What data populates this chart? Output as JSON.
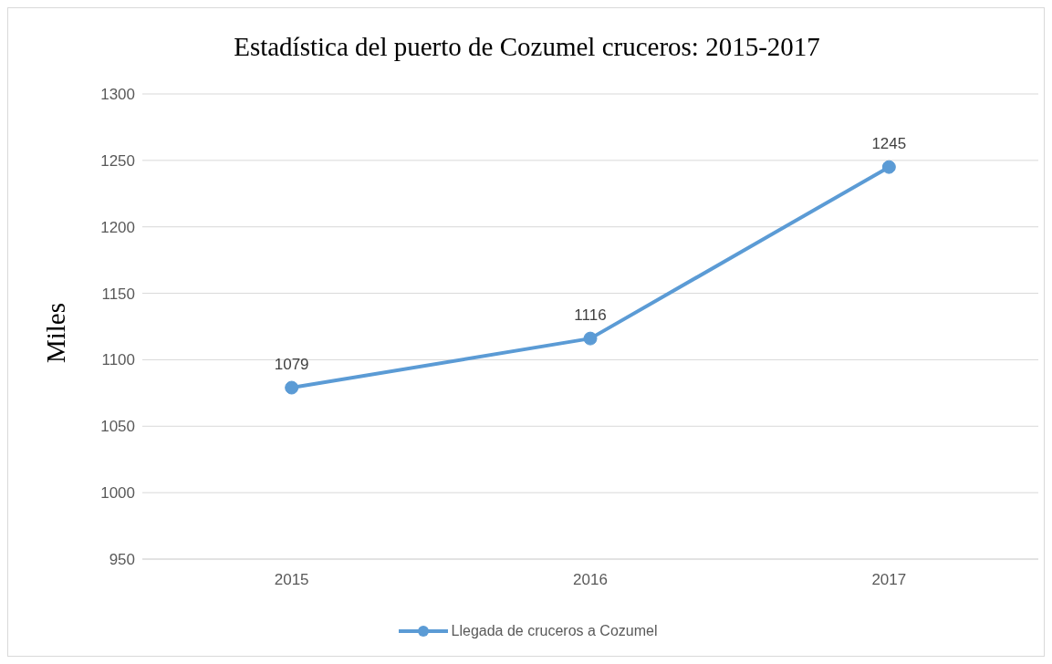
{
  "chart_data": {
    "type": "line",
    "title": "Estadística del puerto de Cozumel cruceros: 2015-2017",
    "ylabel": "Miles",
    "categories": [
      "2015",
      "2016",
      "2017"
    ],
    "series": [
      {
        "name": "Llegada de cruceros a Cozumel",
        "color": "#5b9bd5",
        "values": [
          1079,
          1116,
          1245
        ]
      }
    ],
    "ylim": [
      950,
      1300
    ],
    "yticks": [
      950,
      1000,
      1050,
      1100,
      1150,
      1200,
      1250,
      1300
    ],
    "grid": "y",
    "legend": "bottom",
    "marker": "circle",
    "line_style": "solid",
    "data_labels": true
  }
}
